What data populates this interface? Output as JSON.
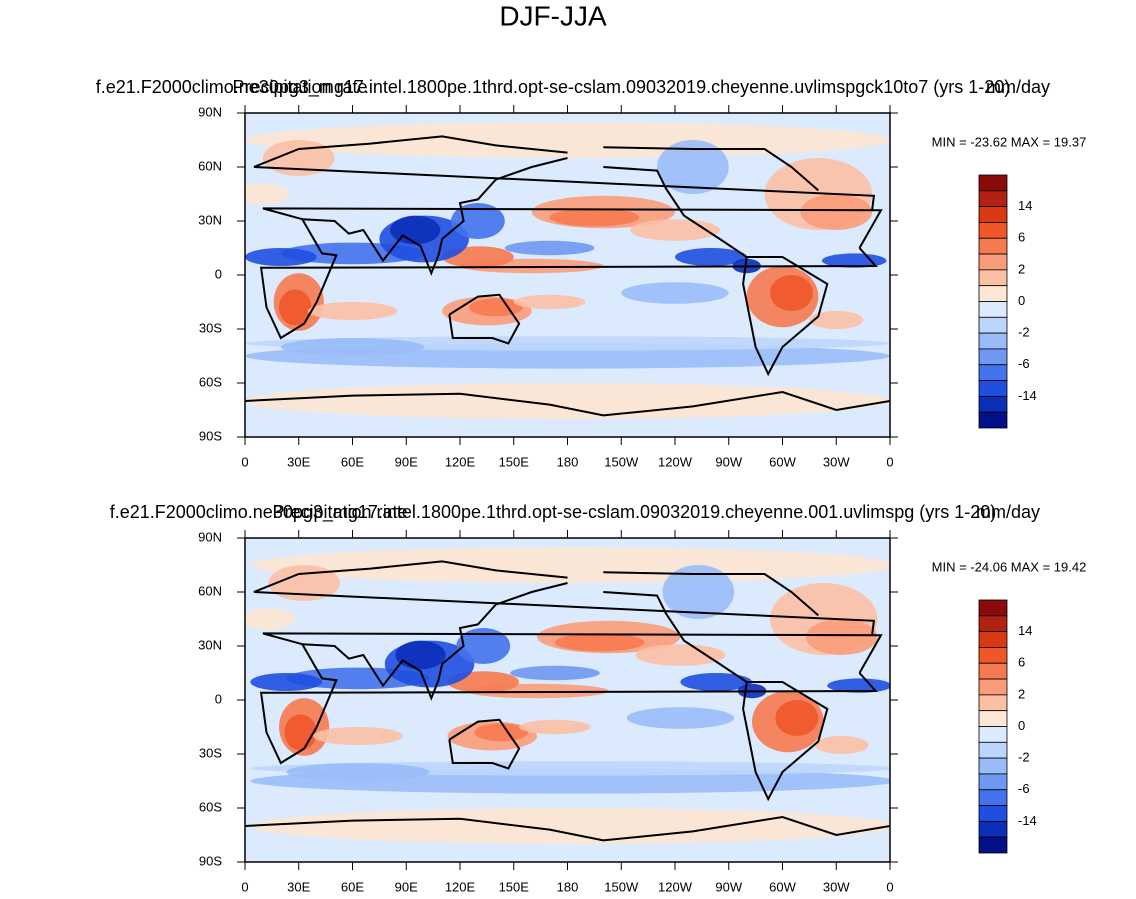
{
  "title": "DJF-JJA",
  "lat_labels": [
    "90N",
    "60N",
    "30N",
    "0",
    "30S",
    "60S",
    "90S"
  ],
  "lon_labels": [
    "0",
    "30E",
    "60E",
    "90E",
    "120E",
    "150E",
    "180",
    "150W",
    "120W",
    "90W",
    "60W",
    "30W",
    "0"
  ],
  "colorbar": {
    "labels": [
      14,
      6,
      2,
      0,
      -2,
      -6,
      -14
    ],
    "colors": [
      "#8b0b0b",
      "#b22213",
      "#d93a13",
      "#f0562a",
      "#f67a50",
      "#f99c7a",
      "#fbc0a4",
      "#fde6d3",
      "#dbeafc",
      "#bcd6fb",
      "#99bcf8",
      "#6f98f3",
      "#4472ec",
      "#1f4fe0",
      "#0b2fb8",
      "#02108a"
    ]
  },
  "panels": [
    {
      "left_title": "f.e21.F2000climo.ne30pg3_mg17.intel.1800pe.1thrd.opt-se-cslam.09032019.cheyenne.uvlimspgck10to7 (yrs 1-20)",
      "center_title": "Precipitation rate",
      "right_title": "mm/day",
      "min_max": "MIN = -23.62 MAX =  19.37"
    },
    {
      "left_title": "f.e21.F2000climo.ne30pg3_mg17.intel.1800pe.1thrd.opt-se-cslam.09032019.cheyenne.001.uvlimspg (yrs 1-20)",
      "center_title": "Precipitation rate",
      "right_title": "mm/day",
      "min_max": "MIN = -24.06 MAX =  19.42"
    }
  ]
}
